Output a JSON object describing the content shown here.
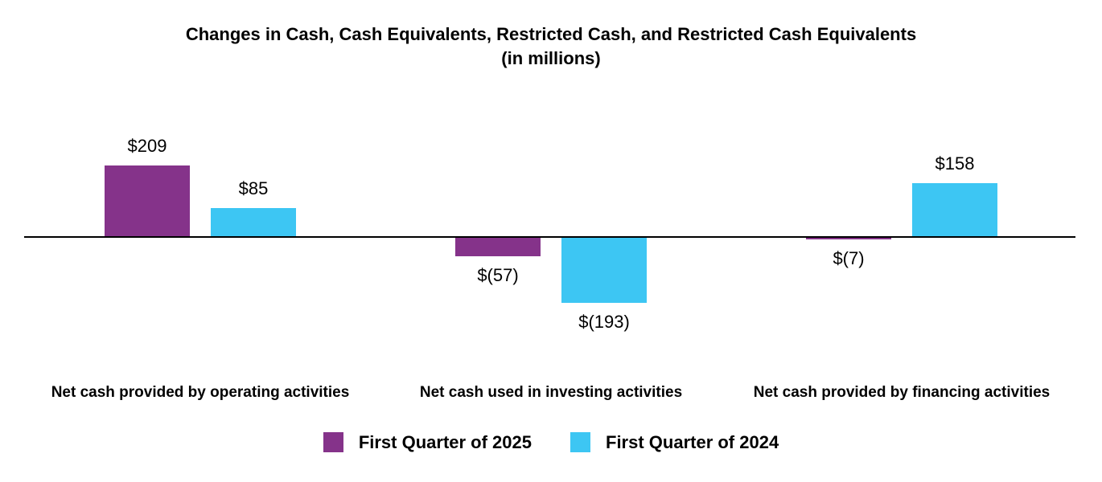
{
  "page": {
    "background_color": "#ffffff",
    "text_color": "#000000"
  },
  "chart_data": {
    "type": "bar",
    "title": "Changes in Cash, Cash Equivalents, Restricted Cash, and Restricted Cash Equivalents",
    "subtitle": "(in millions)",
    "categories": [
      "Net cash provided by operating activities",
      "Net cash used in investing activities",
      "Net cash provided by financing activities"
    ],
    "series": [
      {
        "name": "First Quarter of 2025",
        "color": "#85338A",
        "values": [
          209,
          -57,
          -7
        ],
        "value_labels": [
          "$209",
          "$(57)",
          "$(7)"
        ]
      },
      {
        "name": "First Quarter of 2024",
        "color": "#3DC6F3",
        "values": [
          85,
          -193,
          158
        ],
        "value_labels": [
          "$85",
          "$(193)",
          "$158"
        ]
      }
    ],
    "ylim": [
      -220,
      230
    ],
    "baseline": 0,
    "grid": false,
    "legend_position": "bottom",
    "axis_color": "#000000"
  }
}
